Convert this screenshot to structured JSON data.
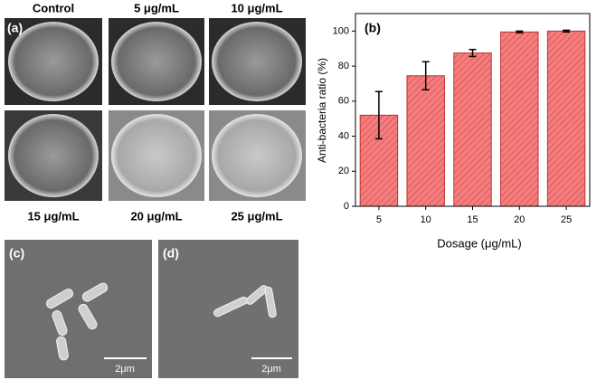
{
  "figure": {
    "panel_labels": [
      "(a)",
      "(b)",
      "(c)",
      "(d)"
    ],
    "photo_labels": [
      "Control",
      "5 μg/mL",
      "10 μg/mL",
      "15 μg/mL",
      "20 μg/mL",
      "25 μg/mL"
    ],
    "scale_bar_labels": [
      "2μm",
      "2μm"
    ]
  },
  "chart_data": {
    "type": "bar",
    "x_label": "Dosage (μg/mL)",
    "y_label": "Anti-bacteria ratio (%)",
    "categories": [
      "5",
      "10",
      "15",
      "20",
      "25"
    ],
    "values": [
      52,
      74.5,
      87.5,
      99.5,
      100
    ],
    "errors": [
      13.5,
      8,
      2,
      0.5,
      0.5
    ],
    "color": "#f47e7e",
    "ylim": [
      0,
      110
    ],
    "yticks": [
      0,
      20,
      40,
      60,
      80,
      100
    ]
  }
}
